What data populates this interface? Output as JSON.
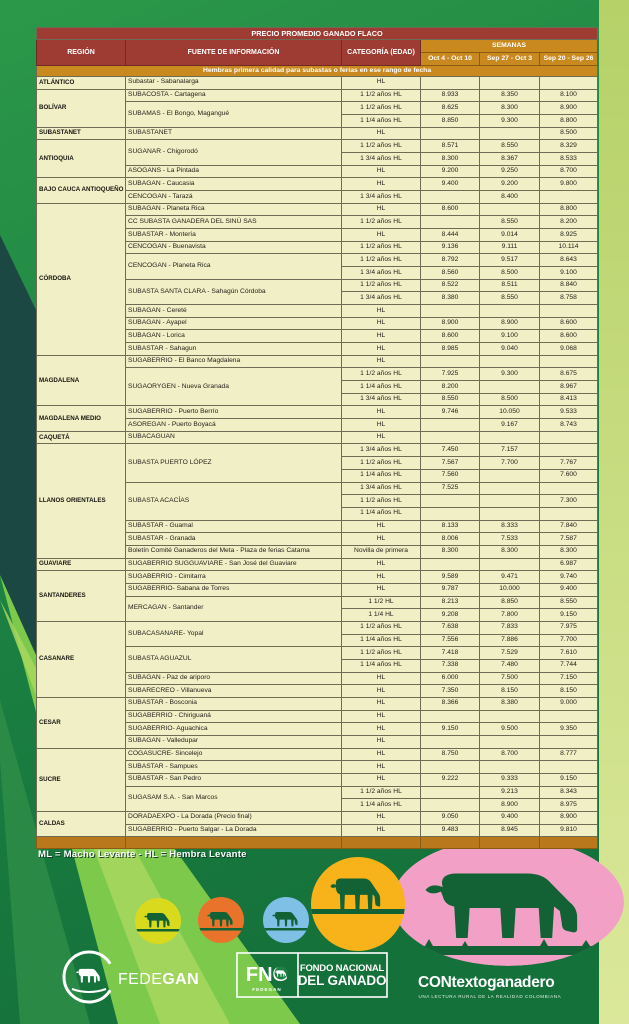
{
  "table": {
    "title": "PRECIO PROMEDIO GANADO FLACO",
    "headers": {
      "region": "REGIÓN",
      "source": "FUENTE DE INFORMACIÓN",
      "category": "CATEGORÍA (EDAD)",
      "weeks_group": "SEMANAS",
      "weeks": [
        "Oct 4 - Oct 10",
        "Sep 27 - Oct 3",
        "Sep 20 - Sep 26"
      ]
    },
    "banner": "Hembras primera calidad para subastas o ferias en ese rango de fecha",
    "regions": [
      {
        "name": "ATLÁNTICO",
        "sources": [
          {
            "name": "Subastar - Sabanalarga",
            "rows": [
              [
                "HL",
                "",
                "",
                ""
              ]
            ]
          }
        ]
      },
      {
        "name": "BOLÍVAR",
        "sources": [
          {
            "name": "SUBACOSTA - Cartagena",
            "rows": [
              [
                "1 1/2 años HL",
                "8.933",
                "8.350",
                "8.100"
              ]
            ]
          },
          {
            "name": "SUBAMAS - El Bongo, Magangué",
            "rows": [
              [
                "1 1/2 años HL",
                "8.625",
                "8.300",
                "8.900"
              ],
              [
                "1 1/4 años HL",
                "8.850",
                "9.300",
                "8.800"
              ]
            ]
          }
        ]
      },
      {
        "name": "SUBASTANET",
        "sources": [
          {
            "name": "SUBASTANET",
            "rows": [
              [
                "HL",
                "",
                "",
                "8.500"
              ]
            ]
          }
        ]
      },
      {
        "name": "ANTIOQUIA",
        "sources": [
          {
            "name": "SUGANAR - Chigorodó",
            "rows": [
              [
                "1 1/2 años HL",
                "8.571",
                "8.550",
                "8.329"
              ],
              [
                "1 3/4 años HL",
                "8.300",
                "8.367",
                "8.533"
              ]
            ]
          },
          {
            "name": "ASOGANS - La Pintada",
            "rows": [
              [
                "HL",
                "9.200",
                "9.250",
                "8.700"
              ]
            ]
          }
        ]
      },
      {
        "name": "BAJO CAUCA ANTIOQUEÑO",
        "sources": [
          {
            "name": "SUBAGAN - Caucasia",
            "rows": [
              [
                "HL",
                "9.400",
                "9.200",
                "9.800"
              ]
            ]
          },
          {
            "name": "CENCOGAN - Tarazá",
            "rows": [
              [
                "1 3/4 años HL",
                "",
                "8.400",
                ""
              ]
            ]
          }
        ]
      },
      {
        "name": "CÓRDOBA",
        "sources": [
          {
            "name": "SUBAGAN - Planeta Rica",
            "rows": [
              [
                "HL",
                "8.600",
                "",
                "8.800"
              ]
            ]
          },
          {
            "name": "CC SUBASTA GANADERA DEL SINÚ SAS",
            "rows": [
              [
                "1 1/2 años HL",
                "",
                "8.550",
                "8.200"
              ]
            ]
          },
          {
            "name": "SUBASTAR - Montería",
            "rows": [
              [
                "HL",
                "8.444",
                "9.014",
                "8.925"
              ]
            ]
          },
          {
            "name": "CENCOGAN - Buenavista",
            "rows": [
              [
                "1 1/2 años HL",
                "9.136",
                "9.111",
                "10.114"
              ]
            ]
          },
          {
            "name": "CENCOGAN - Planeta Rica",
            "rows": [
              [
                "1 1/2 años HL",
                "8.792",
                "9.517",
                "8.643"
              ],
              [
                "1 3/4 años HL",
                "8.560",
                "8.500",
                "9.100"
              ]
            ]
          },
          {
            "name": "SUBASTA SANTA CLARA - Sahagún Córdoba",
            "rows": [
              [
                "1 1/2 años HL",
                "8.522",
                "8.511",
                "8.840"
              ],
              [
                "1 3/4 años HL",
                "8.380",
                "8.550",
                "8.758"
              ]
            ]
          },
          {
            "name": "SUBAGAN - Cereté",
            "rows": [
              [
                "HL",
                "",
                "",
                ""
              ]
            ]
          },
          {
            "name": "SUBAGAN - Ayapel",
            "rows": [
              [
                "HL",
                "8.900",
                "8.900",
                "8.600"
              ]
            ]
          },
          {
            "name": "SUBAGAN - Lorica",
            "rows": [
              [
                "HL",
                "8.600",
                "9.100",
                "8.600"
              ]
            ]
          },
          {
            "name": "SUBASTAR - Sahagun",
            "rows": [
              [
                "HL",
                "8.985",
                "9.040",
                "9.068"
              ]
            ]
          }
        ]
      },
      {
        "name": "MAGDALENA",
        "sources": [
          {
            "name": "SUGABERRIO - El Banco Magdalena",
            "rows": [
              [
                "HL",
                "",
                "",
                ""
              ]
            ]
          },
          {
            "name": "SUGAORYGEN - Nueva Granada",
            "rows": [
              [
                "1 1/2 años HL",
                "7.925",
                "9.300",
                "8.675"
              ],
              [
                "1 1/4 años HL",
                "8.200",
                "",
                "8.967"
              ],
              [
                "1 3/4 años HL",
                "8.550",
                "8.500",
                "8.413"
              ]
            ]
          }
        ]
      },
      {
        "name": "MAGDALENA MEDIO",
        "sources": [
          {
            "name": "SUGABERRIO - Puerto Berrío",
            "rows": [
              [
                "HL",
                "9.746",
                "10.050",
                "9.533"
              ]
            ]
          },
          {
            "name": "ASOREGAN - Puerto Boyacá",
            "rows": [
              [
                "HL",
                "",
                "9.167",
                "8.743"
              ]
            ]
          }
        ]
      },
      {
        "name": "CAQUETÁ",
        "sources": [
          {
            "name": "SUBACAGUAN",
            "rows": [
              [
                "HL",
                "",
                "",
                ""
              ]
            ]
          }
        ]
      },
      {
        "name": "LLANOS ORIENTALES",
        "sources": [
          {
            "name": "SUBASTA PUERTO LÓPEZ",
            "rows": [
              [
                "1 3/4 años HL",
                "7.450",
                "7.157",
                ""
              ],
              [
                "1 1/2 años HL",
                "7.567",
                "7.700",
                "7.767"
              ],
              [
                "1 1/4 años HL",
                "7.560",
                "",
                "7.600"
              ]
            ]
          },
          {
            "name": "SUBASTA ACACÍAS",
            "rows": [
              [
                "1 3/4 años HL",
                "7.525",
                "",
                ""
              ],
              [
                "1 1/2 años HL",
                "",
                "",
                "7.300"
              ],
              [
                "1 1/4 años HL",
                "",
                "",
                ""
              ]
            ]
          },
          {
            "name": "SUBASTAR - Guamal",
            "rows": [
              [
                "HL",
                "8.133",
                "8.333",
                "7.840"
              ]
            ]
          },
          {
            "name": "SUBASTAR - Granada",
            "rows": [
              [
                "HL",
                "8.006",
                "7.533",
                "7.587"
              ]
            ]
          },
          {
            "name": "Boletín Comité Ganaderos del Meta - Plaza de ferias Catama",
            "rows": [
              [
                "Novilla de primera",
                "8.300",
                "8.300",
                "8.300"
              ]
            ]
          }
        ]
      },
      {
        "name": "GUAVIARE",
        "sources": [
          {
            "name": "SUGABERRIO SUGGUAVIARE - San José del Guaviare",
            "rows": [
              [
                "HL",
                "",
                "",
                "6.987"
              ]
            ]
          }
        ]
      },
      {
        "name": "SANTANDERES",
        "sources": [
          {
            "name": "SUGABERRIO - Cimitarra",
            "rows": [
              [
                "HL",
                "9.589",
                "9.471",
                "9.740"
              ]
            ]
          },
          {
            "name": "SUGABERRIO- Sabana de Torres",
            "rows": [
              [
                "HL",
                "9.787",
                "10.000",
                "9.400"
              ]
            ]
          },
          {
            "name": "MERCAGAN - Santander",
            "rows": [
              [
                "1 1/2 HL",
                "8.213",
                "8.850",
                "8.550"
              ],
              [
                "1 1/4 HL",
                "9.208",
                "7.800",
                "9.150"
              ]
            ]
          }
        ]
      },
      {
        "name": "CASANARE",
        "sources": [
          {
            "name": "SUBACASANARE- Yopal",
            "rows": [
              [
                "1 1/2 años HL",
                "7.638",
                "7.833",
                "7.975"
              ],
              [
                "1 1/4 años HL",
                "7.556",
                "7.886",
                "7.700"
              ]
            ]
          },
          {
            "name": "SUBASTA AGUAZUL",
            "rows": [
              [
                "1 1/2 años HL",
                "7.418",
                "7.529",
                "7.610"
              ],
              [
                "1 1/4 años HL",
                "7.338",
                "7.480",
                "7.744"
              ]
            ]
          },
          {
            "name": "SUBAGAN - Paz de ariporo",
            "rows": [
              [
                "HL",
                "6.000",
                "7.500",
                "7.150"
              ]
            ]
          },
          {
            "name": "SUBARECREO - Villanueva",
            "rows": [
              [
                "HL",
                "7.350",
                "8.150",
                "8.150"
              ]
            ]
          }
        ]
      },
      {
        "name": "CESAR",
        "sources": [
          {
            "name": "SUBASTAR - Bosconia",
            "rows": [
              [
                "HL",
                "8.366",
                "8.380",
                "9.000"
              ]
            ]
          },
          {
            "name": "SUGABERRIO - Chiriguaná",
            "rows": [
              [
                "HL",
                "",
                "",
                ""
              ]
            ]
          },
          {
            "name": "SUGABERRIO- Aguachica",
            "rows": [
              [
                "HL",
                "9.150",
                "9.500",
                "9.350"
              ]
            ]
          },
          {
            "name": "SUBAGAN - Valledupar",
            "rows": [
              [
                "HL",
                "",
                "",
                ""
              ]
            ]
          }
        ]
      },
      {
        "name": "SUCRE",
        "sources": [
          {
            "name": "COGASUCRE- Sincelejo",
            "rows": [
              [
                "HL",
                "8.750",
                "8.700",
                "8.777"
              ]
            ]
          },
          {
            "name": "SUBASTAR - Sampues",
            "rows": [
              [
                "HL",
                "",
                "",
                ""
              ]
            ]
          },
          {
            "name": "SUBASTAR - San Pedro",
            "rows": [
              [
                "HL",
                "9.222",
                "9.333",
                "9.150"
              ]
            ]
          },
          {
            "name": "SUGASAM S.A. - San Marcos",
            "rows": [
              [
                "1 1/2 años HL",
                "",
                "9.213",
                "8.343"
              ],
              [
                "1 1/4 años HL",
                "",
                "8.900",
                "8.975"
              ]
            ]
          }
        ]
      },
      {
        "name": "CALDAS",
        "sources": [
          {
            "name": "DORADAEXPO - La Dorada (Precio final)",
            "rows": [
              [
                "HL",
                "9.050",
                "9.400",
                "8.900"
              ]
            ]
          },
          {
            "name": "SUGABERRIO - Puerto Salgar - La Dorada",
            "rows": [
              [
                "HL",
                "9.483",
                "8.945",
                "9.810"
              ]
            ]
          }
        ]
      }
    ]
  },
  "legend": "ML = Macho Levante  -  HL = Hembra Levante",
  "logos": {
    "fedegan": {
      "fede": "FEDE",
      "gan": "GAN"
    },
    "fng": {
      "acronym": "FNG",
      "sub": "FEDEGAN",
      "line1": "FONDO NACIONAL",
      "line2": "DEL GANADO"
    },
    "contexto": {
      "title": "CONtextoganadero",
      "subtitle": "UNA LECTURA RURAL DE LA REALIDAD COLOMBIANA"
    }
  },
  "colors": {
    "header_red": "#9e3b33",
    "band_orange": "#c9891e",
    "cell_yellow": "#f1efc6",
    "circle_lime": "#d9da1e",
    "circle_orange": "#e9732b",
    "circle_blue": "#7fc0e6",
    "circle_gold": "#f7b319",
    "circle_pink": "#f2a0c5",
    "cow_green": "#126236"
  }
}
